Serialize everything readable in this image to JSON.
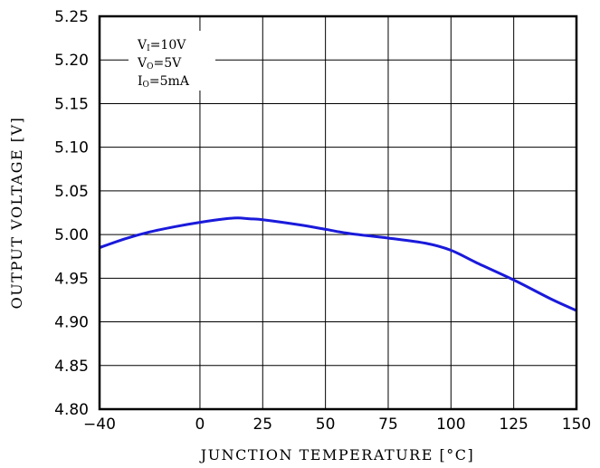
{
  "chart_data": {
    "type": "line",
    "title": "",
    "xlabel": "JUNCTION TEMPERATURE [°C]",
    "ylabel": "OUTPUT VOLTAGE [V]",
    "xlim": [
      -40,
      150
    ],
    "ylim": [
      4.8,
      5.25
    ],
    "x_ticks": [
      -40,
      0,
      25,
      50,
      75,
      100,
      125,
      150
    ],
    "x_tick_labels": [
      "−40",
      "0",
      "25",
      "50",
      "75",
      "100",
      "125",
      "150"
    ],
    "y_ticks": [
      4.8,
      4.85,
      4.9,
      4.95,
      5.0,
      5.05,
      5.1,
      5.15,
      5.2,
      5.25
    ],
    "y_tick_labels": [
      "4.80",
      "4.85",
      "4.90",
      "4.95",
      "5.00",
      "5.05",
      "5.10",
      "5.15",
      "5.20",
      "5.25"
    ],
    "grid": true,
    "series": [
      {
        "color": "#1a1adb",
        "x": [
          -40,
          -30,
          -20,
          -10,
          0,
          10,
          15,
          20,
          25,
          40,
          50,
          60,
          75,
          90,
          100,
          110,
          125,
          140,
          150
        ],
        "y": [
          4.985,
          4.995,
          5.003,
          5.009,
          5.014,
          5.018,
          5.019,
          5.018,
          5.017,
          5.011,
          5.006,
          5.001,
          4.996,
          4.99,
          4.982,
          4.968,
          4.948,
          4.926,
          4.913
        ]
      }
    ],
    "annotation": {
      "lines": [
        {
          "main": "V",
          "sub": "I",
          "rest": "=10V"
        },
        {
          "main": "V",
          "sub": "O",
          "rest": "=5V"
        },
        {
          "main": "I",
          "sub": "O",
          "rest": "=5mA"
        }
      ]
    }
  }
}
